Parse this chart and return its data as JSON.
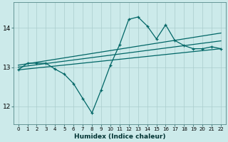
{
  "xlabel": "Humidex (Indice chaleur)",
  "bg_color": "#cceaea",
  "line_color": "#006666",
  "grid_color": "#aacccc",
  "xlim": [
    -0.5,
    22.5
  ],
  "ylim": [
    11.55,
    14.65
  ],
  "yticks": [
    12,
    13,
    14
  ],
  "xticks": [
    0,
    1,
    2,
    3,
    4,
    5,
    6,
    7,
    8,
    9,
    10,
    11,
    12,
    13,
    14,
    15,
    16,
    17,
    18,
    19,
    20,
    21,
    22
  ],
  "series": [
    {
      "x": [
        0,
        1,
        2,
        3,
        4,
        5,
        6,
        7,
        8,
        9,
        10,
        11,
        12,
        13,
        14,
        15,
        16,
        17,
        18,
        19,
        20,
        21,
        22
      ],
      "y": [
        12.93,
        13.1,
        13.1,
        13.1,
        12.95,
        12.82,
        12.58,
        12.2,
        11.83,
        12.42,
        13.05,
        13.57,
        14.22,
        14.28,
        14.05,
        13.72,
        14.08,
        13.68,
        13.55,
        13.47,
        13.47,
        13.52,
        13.47
      ]
    },
    {
      "x": [
        0,
        22
      ],
      "y": [
        13.05,
        13.87
      ]
    },
    {
      "x": [
        0,
        22
      ],
      "y": [
        13.0,
        13.67
      ]
    },
    {
      "x": [
        0,
        22
      ],
      "y": [
        12.93,
        13.47
      ]
    }
  ]
}
